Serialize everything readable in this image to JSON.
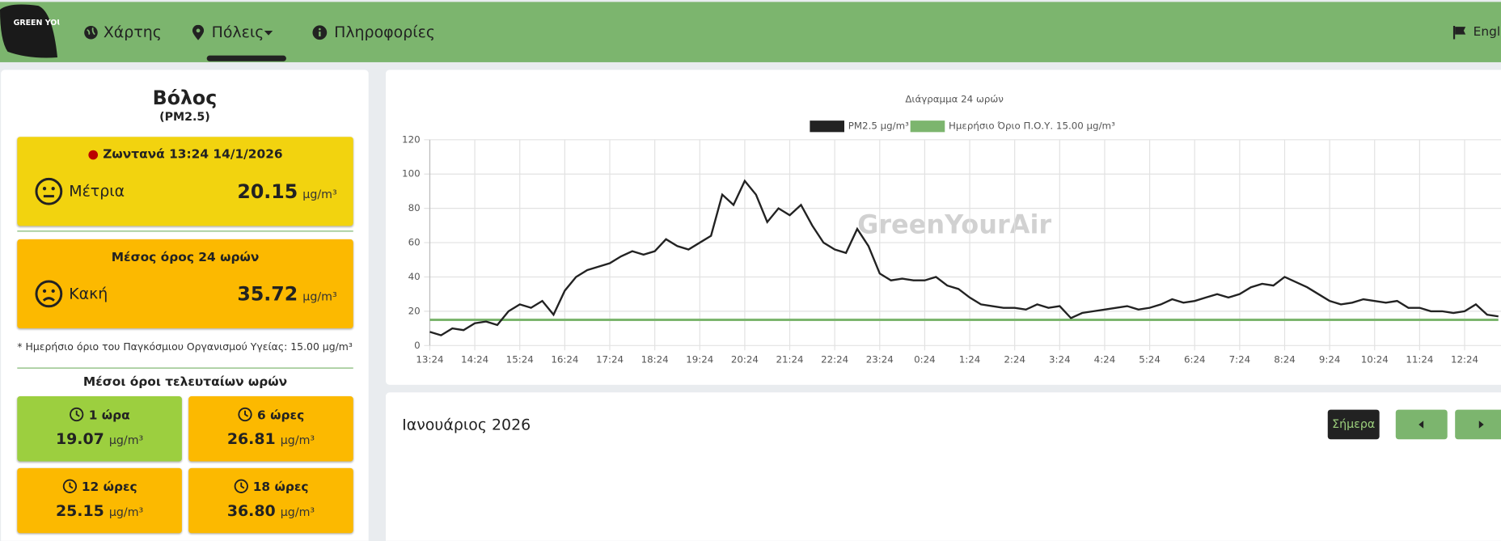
{
  "nav": {
    "logo": "GREEN YOUR AIR",
    "items": [
      "Χάρτης",
      "Πόλεις",
      "Πληροφορίες"
    ],
    "language": "English"
  },
  "city": {
    "name": "Βόλος",
    "pollutant": "(PM2.5)",
    "units": "μg/m³",
    "live": {
      "label": "Ζωντανά 13:24 14/1/2026",
      "status": "Μέτρια",
      "value": "20.15"
    },
    "avg24": {
      "label": "Μέσος όρος 24 ωρών",
      "status": "Κακή",
      "value": "35.72"
    },
    "note": "* Ημερήσιο όριο του Παγκόσμιου Οργανισμού Υγείας: 15.00 μg/m³",
    "recent_title": "Μέσοι όροι τελευταίων ωρών",
    "recent": [
      {
        "label": "1 ώρα",
        "value": "19.07"
      },
      {
        "label": "6 ώρες",
        "value": "26.81"
      },
      {
        "label": "12 ώρες",
        "value": "25.15"
      },
      {
        "label": "18 ώρες",
        "value": "36.80"
      }
    ]
  },
  "chart_data": {
    "type": "line",
    "title": "Διάγραμμα 24 ωρών",
    "watermark": "GreenYourAir",
    "categories": [
      "13:24",
      null,
      null,
      null,
      "14:24",
      null,
      null,
      null,
      "15:24",
      null,
      null,
      null,
      "16:24",
      null,
      null,
      null,
      "17:24",
      null,
      null,
      null,
      "18:24",
      null,
      null,
      null,
      "19:24",
      null,
      null,
      null,
      "20:24",
      null,
      null,
      null,
      "21:24",
      null,
      null,
      null,
      "22:24",
      null,
      null,
      null,
      "23:24",
      null,
      null,
      null,
      "0:24",
      null,
      null,
      null,
      "1:24",
      null,
      null,
      null,
      "2:24",
      null,
      null,
      null,
      "3:24",
      null,
      null,
      null,
      "4:24",
      null,
      null,
      null,
      "5:24",
      null,
      null,
      null,
      "6:24",
      null,
      null,
      null,
      "7:24",
      null,
      null,
      null,
      "8:24",
      null,
      null,
      null,
      "9:24",
      null,
      null,
      null,
      "10:24",
      null,
      null,
      null,
      "11:24",
      null,
      null,
      null,
      "12:24",
      null,
      null,
      null
    ],
    "series": [
      {
        "name": "PM2.5 μg/m³",
        "color": "#222222",
        "values": [
          8,
          6,
          10,
          9,
          13,
          14,
          12,
          20,
          24,
          22,
          26,
          18,
          32,
          40,
          44,
          46,
          48,
          52,
          55,
          53,
          55,
          62,
          58,
          56,
          60,
          64,
          88,
          82,
          96,
          88,
          72,
          80,
          76,
          82,
          70,
          60,
          56,
          54,
          68,
          58,
          42,
          38,
          39,
          38,
          38,
          40,
          35,
          33,
          28,
          24,
          23,
          22,
          22,
          21,
          24,
          22,
          23,
          16,
          19,
          20,
          21,
          22,
          23,
          21,
          22,
          24,
          27,
          25,
          26,
          28,
          30,
          28,
          30,
          34,
          36,
          35,
          40,
          37,
          34,
          30,
          26,
          24,
          25,
          27,
          26,
          25,
          26,
          22,
          22,
          20,
          20,
          19,
          20,
          24,
          18,
          17
        ]
      },
      {
        "name": "Ημερήσιο Όριο Π.Ο.Υ. 15.00 μg/m³",
        "color": "#7cb56e",
        "values": [
          15,
          15,
          15,
          15,
          15,
          15,
          15,
          15,
          15,
          15,
          15,
          15,
          15,
          15,
          15,
          15,
          15,
          15,
          15,
          15,
          15,
          15,
          15,
          15,
          15,
          15,
          15,
          15,
          15,
          15,
          15,
          15,
          15,
          15,
          15,
          15,
          15,
          15,
          15,
          15,
          15,
          15,
          15,
          15,
          15,
          15,
          15,
          15,
          15,
          15,
          15,
          15,
          15,
          15,
          15,
          15,
          15,
          15,
          15,
          15,
          15,
          15,
          15,
          15,
          15,
          15,
          15,
          15,
          15,
          15,
          15,
          15,
          15,
          15,
          15,
          15,
          15,
          15,
          15,
          15,
          15,
          15,
          15,
          15,
          15,
          15,
          15,
          15,
          15,
          15,
          15,
          15,
          15,
          15,
          15,
          15
        ]
      }
    ],
    "ylim": [
      0,
      120
    ],
    "yticks": [
      0,
      20,
      40,
      60,
      80,
      100,
      120
    ],
    "grid": true
  },
  "calendar": {
    "month": "Ιανουάριος 2026",
    "today": "Σήμερα"
  }
}
